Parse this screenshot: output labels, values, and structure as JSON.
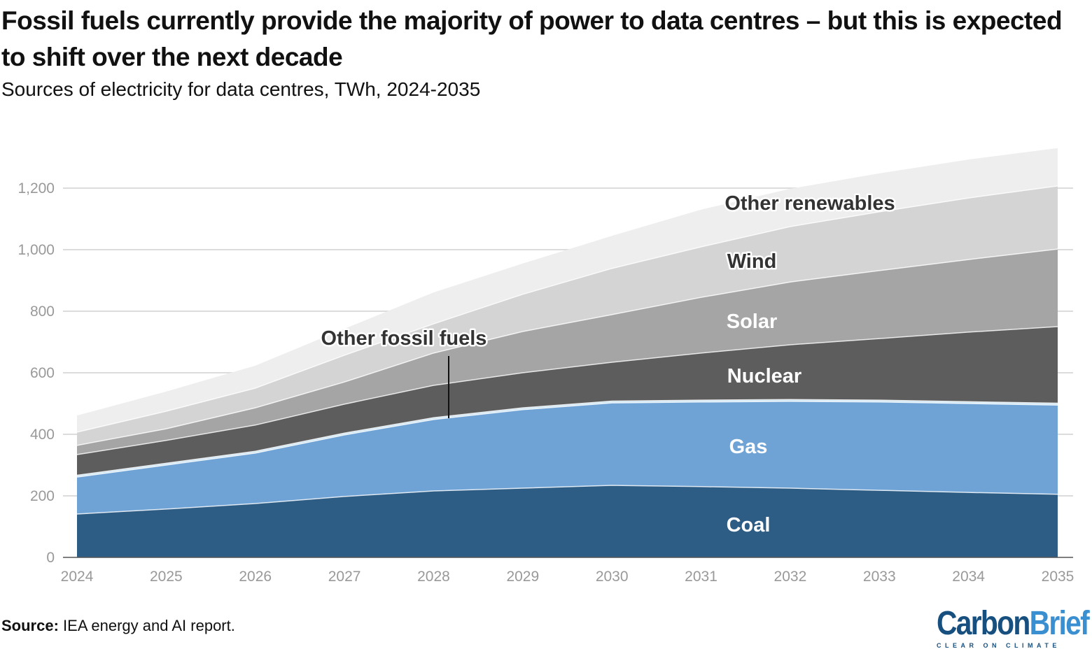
{
  "title": "Fossil fuels currently provide the majority of power to data centres – but this is expected to shift over the next decade",
  "subtitle": "Sources of electricity for data centres, TWh, 2024-2035",
  "source_label": "Source:",
  "source_text": " IEA energy and AI report.",
  "logo": {
    "part1": "Carbon",
    "part2": "Brief",
    "tagline": "CLEAR ON CLIMATE"
  },
  "chart_data": {
    "type": "area",
    "stacked": true,
    "title": "Fossil fuels currently provide the majority of power to data centres – but this is expected to shift over the next decade",
    "subtitle": "Sources of electricity for data centres, TWh, 2024-2035",
    "xlabel": "",
    "ylabel": "",
    "x": [
      2024,
      2025,
      2026,
      2027,
      2028,
      2029,
      2030,
      2031,
      2032,
      2033,
      2034,
      2035
    ],
    "ylim": [
      0,
      1330
    ],
    "yticks": [
      0,
      200,
      400,
      600,
      800,
      1000,
      1200
    ],
    "ytick_labels": [
      "0",
      "200",
      "400",
      "600",
      "800",
      "1,000",
      "1,200"
    ],
    "grid": true,
    "series": [
      {
        "name": "Coal",
        "color": "#2d5c85",
        "label_color": "#ffffff",
        "values": [
          141,
          157,
          175,
          198,
          216,
          225,
          234,
          230,
          225,
          218,
          211,
          205
        ]
      },
      {
        "name": "Gas",
        "color": "#6fa3d6",
        "label_color": "#ffffff",
        "values": [
          120,
          143,
          164,
          200,
          232,
          255,
          268,
          275,
          282,
          287,
          289,
          290
        ]
      },
      {
        "name": "Other fossil fuels",
        "color": "#c6e2f2",
        "label_color": "#333333",
        "values": [
          6,
          6,
          6,
          6,
          6,
          6,
          6,
          6,
          6,
          6,
          6,
          6
        ]
      },
      {
        "name": "Nuclear",
        "color": "#5d5d5d",
        "label_color": "#ffffff",
        "values": [
          67,
          74,
          85,
          94,
          105,
          114,
          126,
          153,
          178,
          200,
          226,
          249
        ]
      },
      {
        "name": "Solar",
        "color": "#a5a5a5",
        "label_color": "#ffffff",
        "values": [
          30,
          38,
          56,
          72,
          105,
          134,
          155,
          181,
          204,
          221,
          236,
          252
        ]
      },
      {
        "name": "Wind",
        "color": "#d4d4d4",
        "label_color": "#333333",
        "values": [
          43,
          57,
          64,
          87,
          95,
          121,
          150,
          164,
          180,
          191,
          200,
          205
        ]
      },
      {
        "name": "Other renewables",
        "color": "#eeeeee",
        "label_color": "#333333",
        "values": [
          54,
          64,
          73,
          86,
          102,
          100,
          106,
          121,
          123,
          125,
          125,
          123
        ]
      }
    ]
  }
}
